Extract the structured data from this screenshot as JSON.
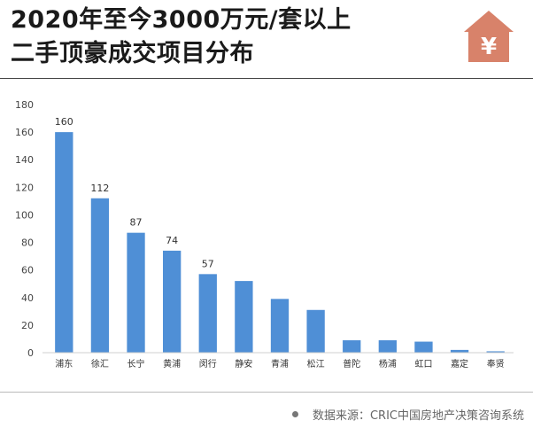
{
  "header": {
    "title_line1": "2020年至今3000万元/套以上",
    "title_line2": "二手顶豪成交项目分布"
  },
  "icons": {
    "price": "yen-house-icon"
  },
  "colors": {
    "bar": "#4f8fd6",
    "bar_dark": "#3a78c3",
    "accent": "#d8826a"
  },
  "chart_data": {
    "type": "bar",
    "categories": [
      "浦东",
      "徐汇",
      "长宁",
      "黄浦",
      "闵行",
      "静安",
      "青浦",
      "松江",
      "普陀",
      "杨浦",
      "虹口",
      "嘉定",
      "奉贤"
    ],
    "values": [
      160,
      112,
      87,
      74,
      57,
      52,
      39,
      31,
      9,
      9,
      8,
      2,
      1
    ],
    "data_labels": [
      "160",
      "112",
      "87",
      "74",
      "57",
      "",
      "",
      "",
      "",
      "",
      "",
      "",
      ""
    ],
    "yticks": [
      "0",
      "20",
      "40",
      "60",
      "80",
      "100",
      "120",
      "140",
      "160",
      "180"
    ],
    "ylim": [
      0,
      180
    ],
    "grid": false,
    "title": "",
    "xlabel": "",
    "ylabel": ""
  },
  "footer": {
    "source": "数据来源：CRIC中国房地产决策咨询系统"
  }
}
